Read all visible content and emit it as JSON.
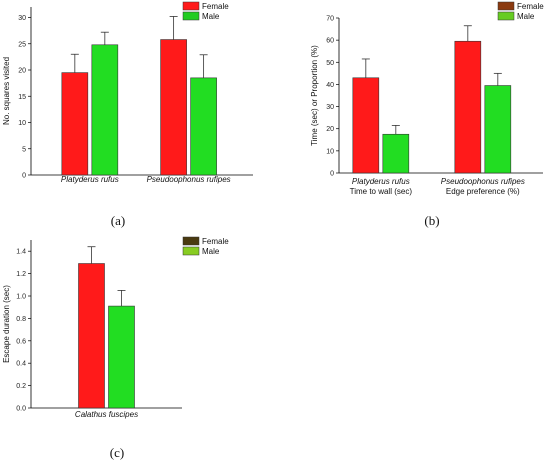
{
  "chart_data": [
    {
      "type": "bar",
      "panel_label": "(a)",
      "ylabel": "No. squares visited",
      "ylim": [
        0,
        32
      ],
      "yticks": [
        0,
        5,
        10,
        15,
        20,
        25,
        30
      ],
      "categories": [
        "Platyderus rufus",
        "Pseudoophonus rufipes"
      ],
      "series": [
        {
          "name": "Female",
          "values": [
            19.5,
            25.8
          ],
          "errors": [
            3.5,
            4.4
          ],
          "color": "#ff1a1a"
        },
        {
          "name": "Male",
          "values": [
            24.8,
            18.5
          ],
          "errors": [
            2.4,
            4.4
          ],
          "color": "#22dd22"
        }
      ],
      "legend": {
        "position": "top-right",
        "swatches": [
          "#ff1a1a",
          "#22cc22"
        ]
      },
      "grid": false
    },
    {
      "type": "bar",
      "panel_label": "(b)",
      "ylabel": "Time (sec) or Proportion (%)",
      "ylim": [
        0,
        70
      ],
      "yticks": [
        0,
        10,
        20,
        30,
        40,
        50,
        60,
        70
      ],
      "categories": [
        "Platyderus rufus",
        "Pseudoophonus rufipes"
      ],
      "category_sublabels": [
        "Time to wall (sec)",
        "Edge preference (%)"
      ],
      "series": [
        {
          "name": "Female",
          "values": [
            43,
            59.5
          ],
          "errors": [
            8.5,
            7
          ],
          "color": "#ff1a1a"
        },
        {
          "name": "Male",
          "values": [
            17.5,
            39.5
          ],
          "errors": [
            4,
            5.5
          ],
          "color": "#22dd22"
        }
      ],
      "legend": {
        "position": "top-right",
        "swatches": [
          "#8b3a10",
          "#66cc22"
        ]
      },
      "grid": false
    },
    {
      "type": "bar",
      "panel_label": "(c)",
      "ylabel": "Escape duration (sec)",
      "ylim": [
        0,
        1.5
      ],
      "yticks": [
        0.0,
        0.2,
        0.4,
        0.6,
        0.8,
        1.0,
        1.2,
        1.4
      ],
      "categories": [
        "Calathus fuscipes"
      ],
      "series": [
        {
          "name": "Female",
          "values": [
            1.29
          ],
          "errors": [
            0.15
          ],
          "color": "#ff1a1a"
        },
        {
          "name": "Male",
          "values": [
            0.91
          ],
          "errors": [
            0.14
          ],
          "color": "#22dd22"
        }
      ],
      "legend": {
        "position": "top-right",
        "swatches": [
          "#4a3a10",
          "#88cc22"
        ]
      },
      "grid": false
    }
  ]
}
